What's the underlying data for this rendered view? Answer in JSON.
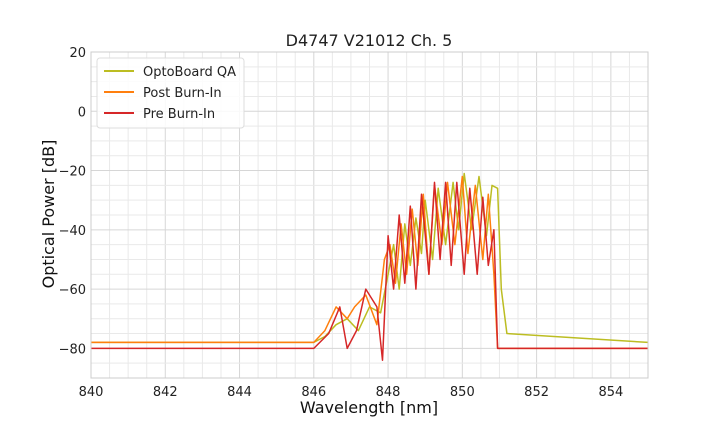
{
  "chart_data": {
    "type": "line",
    "title": "D4747 V21012 Ch. 5",
    "xlabel": "Wavelength [nm]",
    "ylabel": "Optical Power [dB]",
    "xlim": [
      840,
      855
    ],
    "ylim": [
      -90,
      20
    ],
    "x_ticks": [
      "840",
      "842",
      "844",
      "846",
      "848",
      "850",
      "852",
      "854"
    ],
    "y_ticks": [
      "20",
      "0",
      "−20",
      "−40",
      "−60",
      "−80"
    ],
    "grid": true,
    "legend_position": "top-left",
    "series": [
      {
        "name": "OptoBoard QA",
        "color": "#bcbd22",
        "x": [
          840.0,
          846.0,
          846.3,
          846.6,
          846.9,
          847.2,
          847.5,
          847.8,
          848.0,
          848.15,
          848.3,
          848.45,
          848.6,
          848.75,
          848.9,
          849.0,
          849.2,
          849.35,
          849.55,
          849.75,
          849.9,
          850.05,
          850.25,
          850.45,
          850.65,
          850.8,
          850.95,
          851.05,
          851.2,
          855.0
        ],
        "y": [
          -78,
          -78,
          -76,
          -72,
          -70,
          -74,
          -66,
          -68,
          -55,
          -45,
          -60,
          -38,
          -52,
          -36,
          -48,
          -30,
          -50,
          -26,
          -45,
          -24,
          -40,
          -21,
          -40,
          -22,
          -42,
          -25,
          -26,
          -60,
          -75,
          -78
        ]
      },
      {
        "name": "Post Burn-In",
        "color": "#ff7f0e",
        "x": [
          840.0,
          846.0,
          846.3,
          846.6,
          846.9,
          847.1,
          847.4,
          847.7,
          847.9,
          848.05,
          848.2,
          848.35,
          848.5,
          848.65,
          848.8,
          848.95,
          849.1,
          849.25,
          849.45,
          849.6,
          849.8,
          850.0,
          850.15,
          850.35,
          850.55,
          850.7,
          850.85,
          850.95,
          855.0
        ],
        "y": [
          -78,
          -78,
          -74,
          -66,
          -70,
          -66,
          -62,
          -72,
          -50,
          -45,
          -58,
          -38,
          -55,
          -33,
          -52,
          -28,
          -55,
          -25,
          -45,
          -24,
          -45,
          -22,
          -48,
          -25,
          -50,
          -28,
          -55,
          -80,
          -80
        ]
      },
      {
        "name": "Pre Burn-In",
        "color": "#d62728",
        "x": [
          840.0,
          846.0,
          846.4,
          846.7,
          846.9,
          847.15,
          847.4,
          847.7,
          847.85,
          848.0,
          848.15,
          848.3,
          848.45,
          848.6,
          848.75,
          848.9,
          849.1,
          849.25,
          849.4,
          849.55,
          849.7,
          849.85,
          850.05,
          850.2,
          850.4,
          850.55,
          850.7,
          850.85,
          850.95,
          855.0
        ],
        "y": [
          -80,
          -80,
          -75,
          -66,
          -80,
          -74,
          -60,
          -66,
          -84,
          -42,
          -60,
          -35,
          -58,
          -32,
          -60,
          -28,
          -55,
          -24,
          -50,
          -24,
          -52,
          -24,
          -55,
          -26,
          -55,
          -29,
          -52,
          -40,
          -80,
          -80
        ]
      }
    ]
  }
}
